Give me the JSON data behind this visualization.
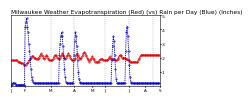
{
  "title": "Milwaukee Weather Evapotranspiration (Red) (vs) Rain per Day (Blue) (Inches)",
  "background_color": "#ffffff",
  "red_color": "#dd0000",
  "blue_color": "#0000cc",
  "grid_color": "#999999",
  "title_fontsize": 4.2,
  "tick_fontsize": 3.0,
  "linewidth": 0.6,
  "marker_size": 0.8,
  "ylim": [
    0,
    0.5
  ],
  "ytick_values": [
    0.1,
    0.2,
    0.3,
    0.4,
    0.5
  ],
  "ytick_labels": [
    ".1",
    ".2",
    ".3",
    ".4",
    ".5"
  ],
  "red_y": [
    0.18,
    0.18,
    0.18,
    0.18,
    0.18,
    0.18,
    0.18,
    0.18,
    0.18,
    0.18,
    0.17,
    0.17,
    0.17,
    0.17,
    0.16,
    0.16,
    0.16,
    0.16,
    0.15,
    0.15,
    0.15,
    0.15,
    0.16,
    0.16,
    0.17,
    0.18,
    0.18,
    0.19,
    0.2,
    0.21,
    0.21,
    0.21,
    0.2,
    0.2,
    0.2,
    0.19,
    0.19,
    0.19,
    0.2,
    0.2,
    0.21,
    0.22,
    0.23,
    0.22,
    0.21,
    0.2,
    0.19,
    0.2,
    0.21,
    0.22,
    0.21,
    0.2,
    0.19,
    0.18,
    0.18,
    0.18,
    0.18,
    0.18,
    0.19,
    0.2,
    0.21,
    0.22,
    0.22,
    0.21,
    0.2,
    0.2,
    0.19,
    0.19,
    0.2,
    0.21,
    0.22,
    0.23,
    0.22,
    0.21,
    0.2,
    0.19,
    0.2,
    0.21,
    0.22,
    0.23,
    0.22,
    0.21,
    0.2,
    0.19,
    0.18,
    0.18,
    0.18,
    0.18,
    0.19,
    0.2,
    0.22,
    0.23,
    0.22,
    0.21,
    0.2,
    0.2,
    0.19,
    0.2,
    0.21,
    0.22,
    0.23,
    0.24,
    0.23,
    0.22,
    0.21,
    0.2,
    0.19,
    0.18,
    0.17,
    0.18,
    0.19,
    0.2,
    0.21,
    0.2,
    0.19,
    0.18,
    0.17,
    0.17,
    0.17,
    0.17,
    0.17,
    0.17,
    0.18,
    0.19,
    0.19,
    0.19,
    0.19,
    0.18,
    0.18,
    0.18,
    0.18,
    0.18,
    0.18,
    0.18,
    0.19,
    0.2,
    0.21,
    0.2,
    0.19,
    0.19,
    0.19,
    0.19,
    0.19,
    0.18,
    0.18,
    0.18,
    0.18,
    0.19,
    0.2,
    0.21,
    0.22,
    0.22,
    0.21,
    0.2,
    0.2,
    0.2,
    0.2,
    0.2,
    0.19,
    0.19,
    0.19,
    0.18,
    0.18,
    0.18,
    0.17,
    0.17,
    0.17,
    0.17,
    0.17,
    0.17,
    0.17,
    0.17,
    0.17,
    0.17,
    0.17,
    0.18,
    0.19,
    0.2,
    0.21,
    0.22,
    0.22,
    0.22,
    0.22,
    0.22,
    0.22,
    0.22,
    0.22,
    0.22,
    0.22,
    0.22,
    0.22,
    0.22,
    0.22,
    0.22,
    0.22,
    0.22,
    0.22,
    0.22,
    0.22,
    0.22,
    0.22,
    0.22,
    0.22,
    0.22,
    0.22
  ],
  "blue_y": [
    0.02,
    0.01,
    0.01,
    0.02,
    0.02,
    0.02,
    0.02,
    0.01,
    0.01,
    0.01,
    0.01,
    0.01,
    0.01,
    0.01,
    0.01,
    0.01,
    0.01,
    0.01,
    0.01,
    0.01,
    0.42,
    0.45,
    0.48,
    0.42,
    0.38,
    0.3,
    0.25,
    0.2,
    0.12,
    0.06,
    0.04,
    0.03,
    0.02,
    0.02,
    0.02,
    0.02,
    0.02,
    0.02,
    0.02,
    0.02,
    0.02,
    0.02,
    0.02,
    0.02,
    0.02,
    0.02,
    0.02,
    0.02,
    0.02,
    0.02,
    0.02,
    0.02,
    0.02,
    0.02,
    0.02,
    0.02,
    0.02,
    0.02,
    0.02,
    0.02,
    0.02,
    0.02,
    0.02,
    0.02,
    0.02,
    0.02,
    0.02,
    0.22,
    0.3,
    0.35,
    0.38,
    0.35,
    0.28,
    0.2,
    0.12,
    0.06,
    0.03,
    0.02,
    0.02,
    0.02,
    0.02,
    0.02,
    0.02,
    0.02,
    0.02,
    0.02,
    0.02,
    0.22,
    0.32,
    0.38,
    0.35,
    0.28,
    0.18,
    0.1,
    0.05,
    0.03,
    0.02,
    0.02,
    0.02,
    0.02,
    0.02,
    0.02,
    0.02,
    0.02,
    0.02,
    0.02,
    0.02,
    0.02,
    0.02,
    0.02,
    0.02,
    0.02,
    0.02,
    0.02,
    0.02,
    0.02,
    0.02,
    0.02,
    0.02,
    0.02,
    0.02,
    0.02,
    0.02,
    0.02,
    0.02,
    0.02,
    0.02,
    0.02,
    0.02,
    0.02,
    0.02,
    0.02,
    0.02,
    0.02,
    0.02,
    0.02,
    0.02,
    0.02,
    0.02,
    0.18,
    0.28,
    0.35,
    0.32,
    0.22,
    0.12,
    0.05,
    0.02,
    0.02,
    0.02,
    0.02,
    0.02,
    0.02,
    0.02,
    0.02,
    0.02,
    0.02,
    0.02,
    0.02,
    0.25,
    0.38,
    0.42,
    0.35,
    0.25,
    0.15,
    0.06,
    0.03,
    0.02,
    0.02,
    0.02,
    0.02,
    0.02,
    0.02,
    0.02,
    0.02,
    0.02,
    0.02,
    0.02,
    0.02,
    0.02,
    0.02,
    0.02,
    0.02,
    0.02,
    0.02,
    0.02,
    0.02,
    0.02,
    0.02,
    0.02,
    0.02,
    0.02,
    0.02,
    0.02,
    0.02,
    0.02,
    0.02,
    0.02,
    0.02,
    0.02,
    0.02,
    0.02,
    0.02,
    0.02,
    0.02,
    0.02
  ],
  "vline_x": [
    20,
    55,
    87,
    130,
    162,
    195
  ],
  "n_points": 205
}
